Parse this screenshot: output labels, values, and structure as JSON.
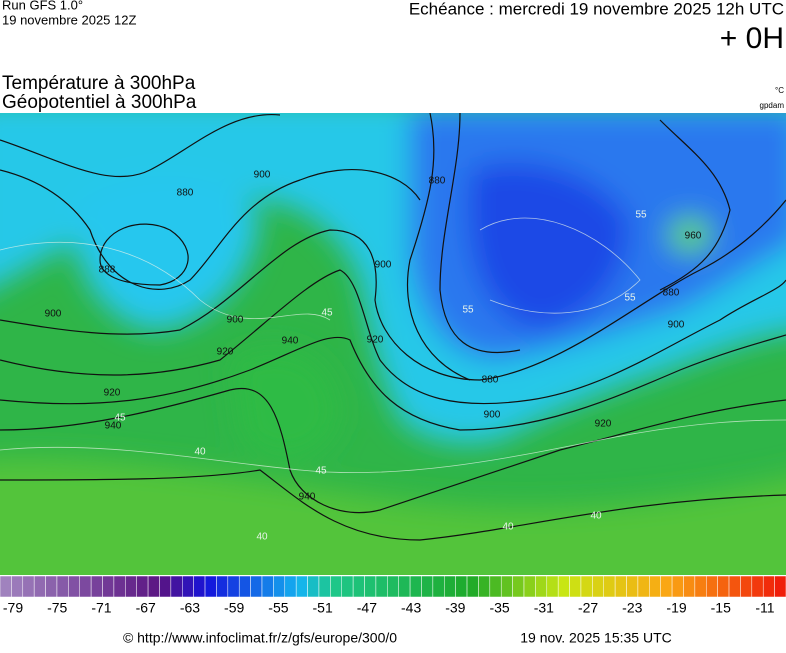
{
  "header": {
    "run": "Run GFS 1.0°",
    "run_date": "19 novembre 2025 12Z",
    "echeance": "Echéance : mercredi 19 novembre 2025 12h UTC",
    "lead": "+ 0H",
    "title1": "Température à 300hPa",
    "title2": "Géopotentiel à 300hPa",
    "unit1": "°C",
    "unit2": "gpdam"
  },
  "map": {
    "contour_labels": [
      880,
      888,
      900,
      900,
      920,
      940,
      920,
      940,
      920,
      900,
      880,
      900,
      960,
      880,
      900,
      880,
      900,
      920,
      940,
      45,
      45,
      40,
      40,
      55,
      55,
      55,
      40,
      40,
      45
    ]
  },
  "colorbar": {
    "labels": [
      -79,
      -75,
      -71,
      -67,
      -63,
      -59,
      -55,
      -51,
      -47,
      -43,
      -39,
      -35,
      -31,
      -27,
      -23,
      -19,
      -15,
      -11
    ]
  },
  "footer": {
    "url": "© http://www.infoclimat.fr/z/gfs/europe/300/0",
    "time": "19 nov. 2025 15:35 UTC"
  }
}
